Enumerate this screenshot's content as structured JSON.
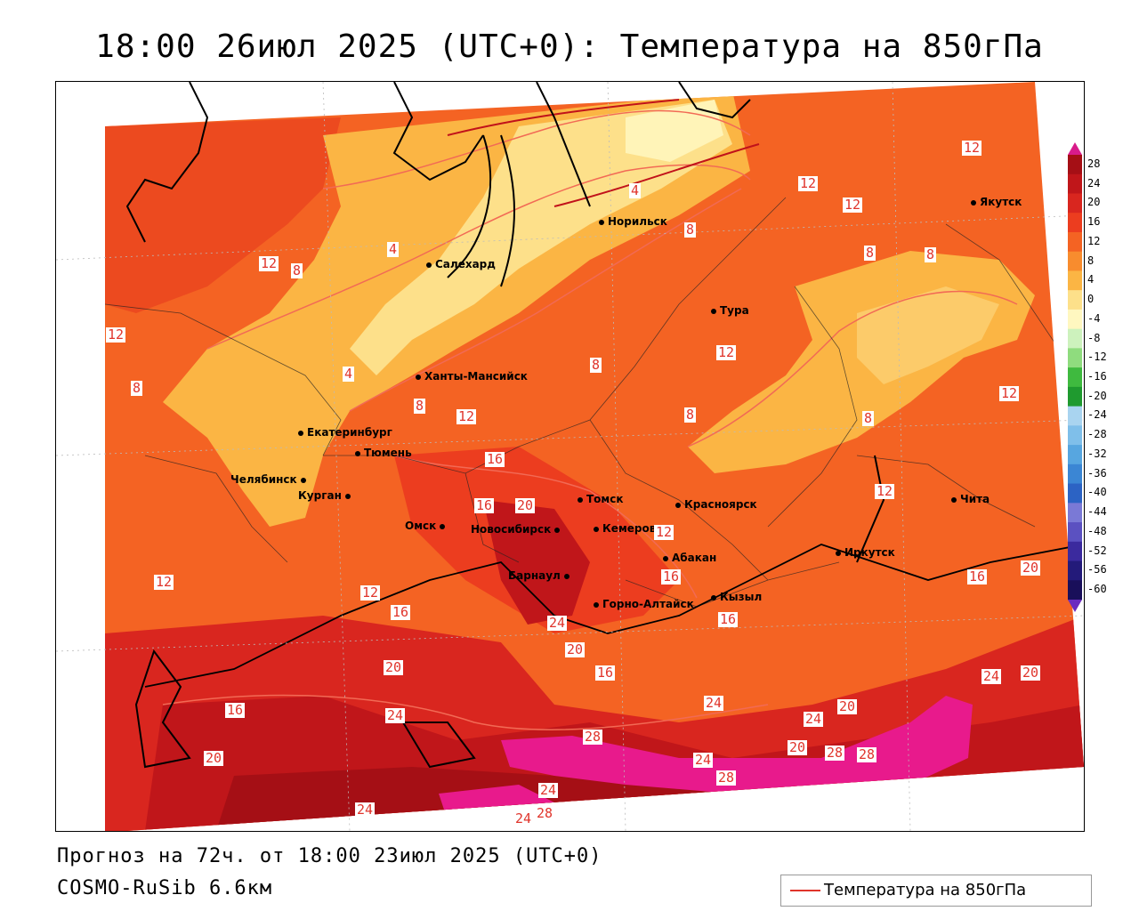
{
  "title": "18:00 26июл 2025 (UTC+0): Температура на 850гПа",
  "footer": {
    "forecast": "Прогноз на 72ч. от 18:00 23июл 2025 (UTC+0)",
    "model": "COSMO-RuSib 6.6км"
  },
  "legend": {
    "label": "Температура на 850гПа",
    "color": "#e0342b"
  },
  "scale": {
    "labels": [
      "28",
      "24",
      "20",
      "16",
      "12",
      "8",
      "4",
      "0",
      "-4",
      "-8",
      "-12",
      "-16",
      "-20",
      "-24",
      "-28",
      "-32",
      "-36",
      "-40",
      "-44",
      "-48",
      "-52",
      "-56",
      "-60"
    ],
    "colors": [
      "#a50f15",
      "#c0161a",
      "#d9261f",
      "#ec3d1f",
      "#f46323",
      "#f88c2e",
      "#fbb544",
      "#fde08a",
      "#fff7c0",
      "#cdf2bd",
      "#8fdc7e",
      "#3fba3f",
      "#1f9a2f",
      "#a9d4f0",
      "#7fbfea",
      "#57a6e0",
      "#3b86d4",
      "#2c63c4",
      "#7a79d6",
      "#5b51c1",
      "#3b2a9e",
      "#231a7a",
      "#190f5a"
    ]
  },
  "cities": [
    {
      "name": "Норильск"
    },
    {
      "name": "Якутск"
    },
    {
      "name": "Салехард"
    },
    {
      "name": "Тура"
    },
    {
      "name": "Ханты-Мансийск"
    },
    {
      "name": "Екатеринбург"
    },
    {
      "name": "Тюмень"
    },
    {
      "name": "Челябинск"
    },
    {
      "name": "Курган"
    },
    {
      "name": "Омск"
    },
    {
      "name": "Новосибирск"
    },
    {
      "name": "Томск"
    },
    {
      "name": "Кемерово"
    },
    {
      "name": "Красноярск"
    },
    {
      "name": "Абакан"
    },
    {
      "name": "Барнаул"
    },
    {
      "name": "Горно-Алтайск"
    },
    {
      "name": "Кызыл"
    },
    {
      "name": "Иркутск"
    },
    {
      "name": "Чита"
    }
  ],
  "isolines": [
    "12",
    "12",
    "12",
    "12",
    "12",
    "8",
    "4",
    "4",
    "8",
    "8",
    "4",
    "8",
    "8",
    "8",
    "12",
    "8",
    "12",
    "8",
    "8",
    "12",
    "16",
    "16",
    "20",
    "12",
    "12",
    "16",
    "12",
    "12",
    "16",
    "16",
    "20",
    "24",
    "20",
    "16",
    "24",
    "20",
    "16",
    "20",
    "16",
    "20",
    "24",
    "24",
    "24",
    "20",
    "28",
    "28",
    "20",
    "28",
    "24",
    "28",
    "24",
    "24",
    "28",
    "24"
  ]
}
